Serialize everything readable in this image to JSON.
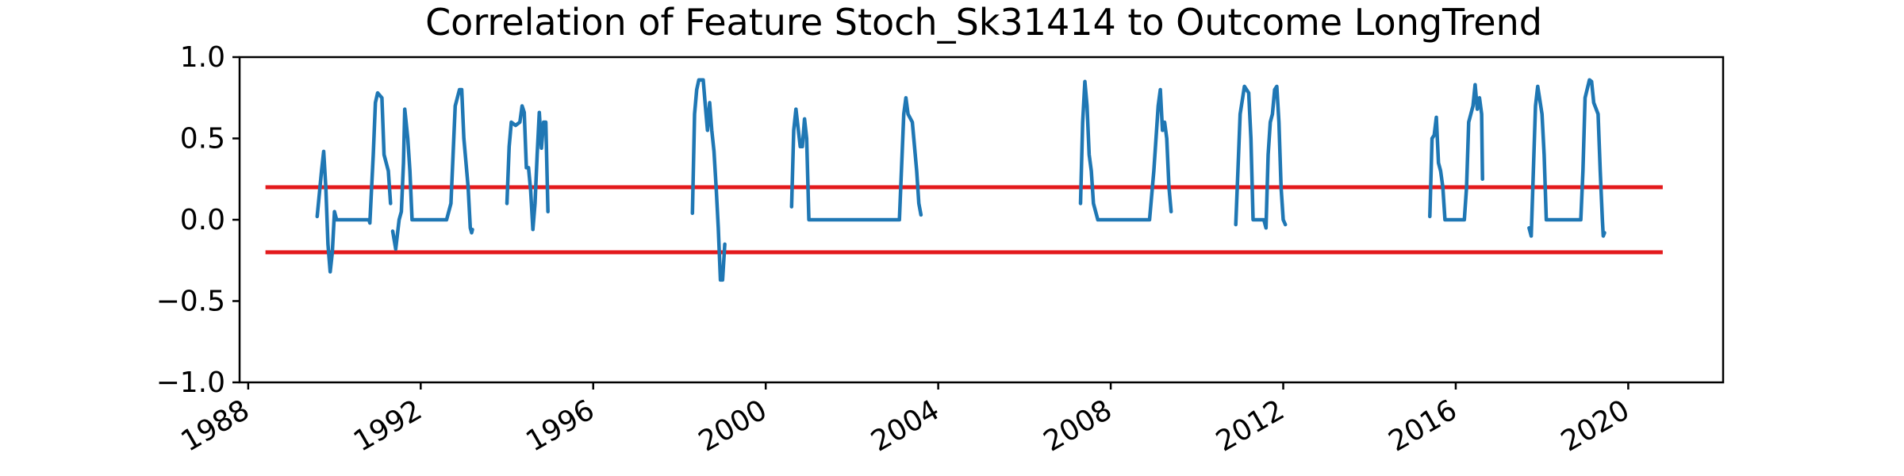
{
  "chart_data": {
    "type": "line",
    "title": "Correlation of Feature Stoch_Sk31414 to Outcome LongTrend",
    "xlabel": "",
    "ylabel": "",
    "x_type": "time",
    "xlim": [
      1987.8,
      2022.2
    ],
    "ylim": [
      -1.0,
      1.0
    ],
    "grid": false,
    "legend": "none",
    "x_ticks": [
      1988,
      1992,
      1996,
      2000,
      2004,
      2008,
      2012,
      2016,
      2020
    ],
    "x_tick_labels": [
      "1988",
      "1992",
      "1996",
      "2000",
      "2004",
      "2008",
      "2012",
      "2016",
      "2020"
    ],
    "y_ticks": [
      -1.0,
      -0.5,
      0.0,
      0.5,
      1.0
    ],
    "y_tick_labels": [
      "−1.0",
      "−0.5",
      "0.0",
      "0.5",
      "1.0"
    ],
    "colors": {
      "series": "#1f77b4",
      "threshold": "#e31a1c"
    },
    "threshold_lines": [
      {
        "y": 0.2,
        "x": [
          1988.4,
          2020.8
        ]
      },
      {
        "y": -0.2,
        "x": [
          1988.4,
          2020.8
        ]
      }
    ],
    "series": [
      {
        "segments": [
          [
            [
              1989.6,
              0.02
            ],
            [
              1989.7,
              0.3
            ],
            [
              1989.75,
              0.42
            ],
            [
              1989.8,
              0.2
            ],
            [
              1989.85,
              -0.15
            ],
            [
              1989.9,
              -0.32
            ],
            [
              1989.95,
              -0.2
            ],
            [
              1990.0,
              0.05
            ],
            [
              1990.05,
              0.0
            ],
            [
              1990.2,
              0.0
            ],
            [
              1990.4,
              0.0
            ],
            [
              1990.6,
              0.0
            ],
            [
              1990.8,
              0.0
            ],
            [
              1990.82,
              -0.02
            ],
            [
              1990.9,
              0.4
            ],
            [
              1990.95,
              0.72
            ],
            [
              1991.0,
              0.78
            ],
            [
              1991.1,
              0.75
            ],
            [
              1991.15,
              0.4
            ],
            [
              1991.25,
              0.3
            ],
            [
              1991.3,
              0.1
            ]
          ],
          [
            [
              1991.35,
              -0.07
            ],
            [
              1991.42,
              -0.18
            ],
            [
              1991.5,
              0.0
            ],
            [
              1991.55,
              0.05
            ],
            [
              1991.6,
              0.35
            ],
            [
              1991.63,
              0.68
            ],
            [
              1991.7,
              0.5
            ],
            [
              1991.75,
              0.3
            ],
            [
              1991.8,
              0.0
            ],
            [
              1992.0,
              0.0
            ],
            [
              1992.2,
              0.0
            ],
            [
              1992.4,
              0.0
            ],
            [
              1992.6,
              0.0
            ],
            [
              1992.7,
              0.1
            ],
            [
              1992.8,
              0.7
            ],
            [
              1992.9,
              0.8
            ],
            [
              1992.95,
              0.8
            ],
            [
              1993.0,
              0.5
            ],
            [
              1993.1,
              0.2
            ],
            [
              1993.15,
              -0.05
            ],
            [
              1993.18,
              -0.08
            ],
            [
              1993.2,
              -0.06
            ]
          ],
          [
            [
              1994.0,
              0.1
            ],
            [
              1994.05,
              0.45
            ],
            [
              1994.1,
              0.6
            ],
            [
              1994.2,
              0.58
            ],
            [
              1994.3,
              0.6
            ],
            [
              1994.35,
              0.7
            ],
            [
              1994.4,
              0.66
            ],
            [
              1994.45,
              0.32
            ],
            [
              1994.5,
              0.32
            ],
            [
              1994.55,
              0.18
            ],
            [
              1994.6,
              -0.06
            ],
            [
              1994.65,
              0.1
            ],
            [
              1994.7,
              0.4
            ],
            [
              1994.75,
              0.66
            ],
            [
              1994.8,
              0.44
            ],
            [
              1994.85,
              0.6
            ],
            [
              1994.9,
              0.6
            ],
            [
              1994.95,
              0.05
            ]
          ],
          [
            [
              1998.3,
              0.04
            ],
            [
              1998.35,
              0.65
            ],
            [
              1998.4,
              0.8
            ],
            [
              1998.45,
              0.86
            ],
            [
              1998.55,
              0.86
            ],
            [
              1998.6,
              0.7
            ],
            [
              1998.65,
              0.55
            ],
            [
              1998.7,
              0.72
            ],
            [
              1998.75,
              0.55
            ],
            [
              1998.8,
              0.42
            ],
            [
              1998.85,
              0.2
            ],
            [
              1998.9,
              -0.05
            ],
            [
              1998.95,
              -0.37
            ],
            [
              1999.0,
              -0.37
            ],
            [
              1999.05,
              -0.15
            ]
          ],
          [
            [
              2000.6,
              0.08
            ],
            [
              2000.65,
              0.55
            ],
            [
              2000.7,
              0.68
            ],
            [
              2000.8,
              0.45
            ],
            [
              2000.85,
              0.45
            ],
            [
              2000.9,
              0.62
            ],
            [
              2000.95,
              0.5
            ],
            [
              2001.0,
              0.0
            ],
            [
              2001.5,
              0.0
            ],
            [
              2002.0,
              0.0
            ],
            [
              2002.5,
              0.0
            ],
            [
              2003.0,
              0.0
            ],
            [
              2003.1,
              0.0
            ],
            [
              2003.2,
              0.65
            ],
            [
              2003.25,
              0.75
            ],
            [
              2003.3,
              0.65
            ],
            [
              2003.4,
              0.6
            ],
            [
              2003.5,
              0.3
            ],
            [
              2003.55,
              0.1
            ],
            [
              2003.6,
              0.03
            ]
          ],
          [
            [
              2007.3,
              0.1
            ],
            [
              2007.35,
              0.6
            ],
            [
              2007.4,
              0.85
            ],
            [
              2007.45,
              0.7
            ],
            [
              2007.5,
              0.4
            ],
            [
              2007.55,
              0.3
            ],
            [
              2007.6,
              0.1
            ],
            [
              2007.7,
              0.0
            ],
            [
              2008.0,
              0.0
            ],
            [
              2008.5,
              0.0
            ],
            [
              2008.9,
              0.0
            ],
            [
              2009.0,
              0.3
            ],
            [
              2009.1,
              0.7
            ],
            [
              2009.15,
              0.8
            ],
            [
              2009.2,
              0.55
            ],
            [
              2009.25,
              0.6
            ],
            [
              2009.3,
              0.5
            ],
            [
              2009.35,
              0.2
            ],
            [
              2009.4,
              0.05
            ]
          ],
          [
            [
              2010.9,
              -0.03
            ],
            [
              2010.95,
              0.3
            ],
            [
              2011.0,
              0.65
            ],
            [
              2011.1,
              0.82
            ],
            [
              2011.2,
              0.78
            ],
            [
              2011.25,
              0.5
            ],
            [
              2011.3,
              0.0
            ],
            [
              2011.4,
              0.0
            ],
            [
              2011.55,
              0.0
            ],
            [
              2011.6,
              -0.05
            ],
            [
              2011.65,
              0.4
            ],
            [
              2011.7,
              0.6
            ],
            [
              2011.75,
              0.65
            ],
            [
              2011.8,
              0.8
            ],
            [
              2011.85,
              0.82
            ],
            [
              2011.9,
              0.6
            ],
            [
              2011.95,
              0.2
            ],
            [
              2012.0,
              0.0
            ],
            [
              2012.05,
              -0.03
            ]
          ],
          [
            [
              2015.4,
              0.02
            ],
            [
              2015.45,
              0.5
            ],
            [
              2015.5,
              0.52
            ],
            [
              2015.55,
              0.63
            ],
            [
              2015.6,
              0.35
            ],
            [
              2015.65,
              0.3
            ],
            [
              2015.7,
              0.2
            ],
            [
              2015.75,
              0.0
            ],
            [
              2016.0,
              0.0
            ],
            [
              2016.2,
              0.0
            ],
            [
              2016.25,
              0.2
            ],
            [
              2016.3,
              0.6
            ],
            [
              2016.4,
              0.7
            ],
            [
              2016.45,
              0.83
            ],
            [
              2016.5,
              0.68
            ],
            [
              2016.55,
              0.75
            ],
            [
              2016.6,
              0.65
            ],
            [
              2016.62,
              0.25
            ]
          ],
          [
            [
              2017.7,
              -0.05
            ],
            [
              2017.75,
              -0.1
            ],
            [
              2017.8,
              0.3
            ],
            [
              2017.85,
              0.7
            ],
            [
              2017.9,
              0.82
            ],
            [
              2018.0,
              0.65
            ],
            [
              2018.05,
              0.4
            ],
            [
              2018.1,
              0.0
            ],
            [
              2018.3,
              0.0
            ],
            [
              2018.6,
              0.0
            ],
            [
              2018.9,
              0.0
            ],
            [
              2018.95,
              0.3
            ],
            [
              2019.0,
              0.75
            ],
            [
              2019.1,
              0.86
            ],
            [
              2019.15,
              0.85
            ],
            [
              2019.2,
              0.72
            ],
            [
              2019.3,
              0.65
            ],
            [
              2019.35,
              0.3
            ],
            [
              2019.4,
              0.0
            ],
            [
              2019.42,
              -0.1
            ],
            [
              2019.45,
              -0.08
            ]
          ]
        ]
      }
    ]
  }
}
